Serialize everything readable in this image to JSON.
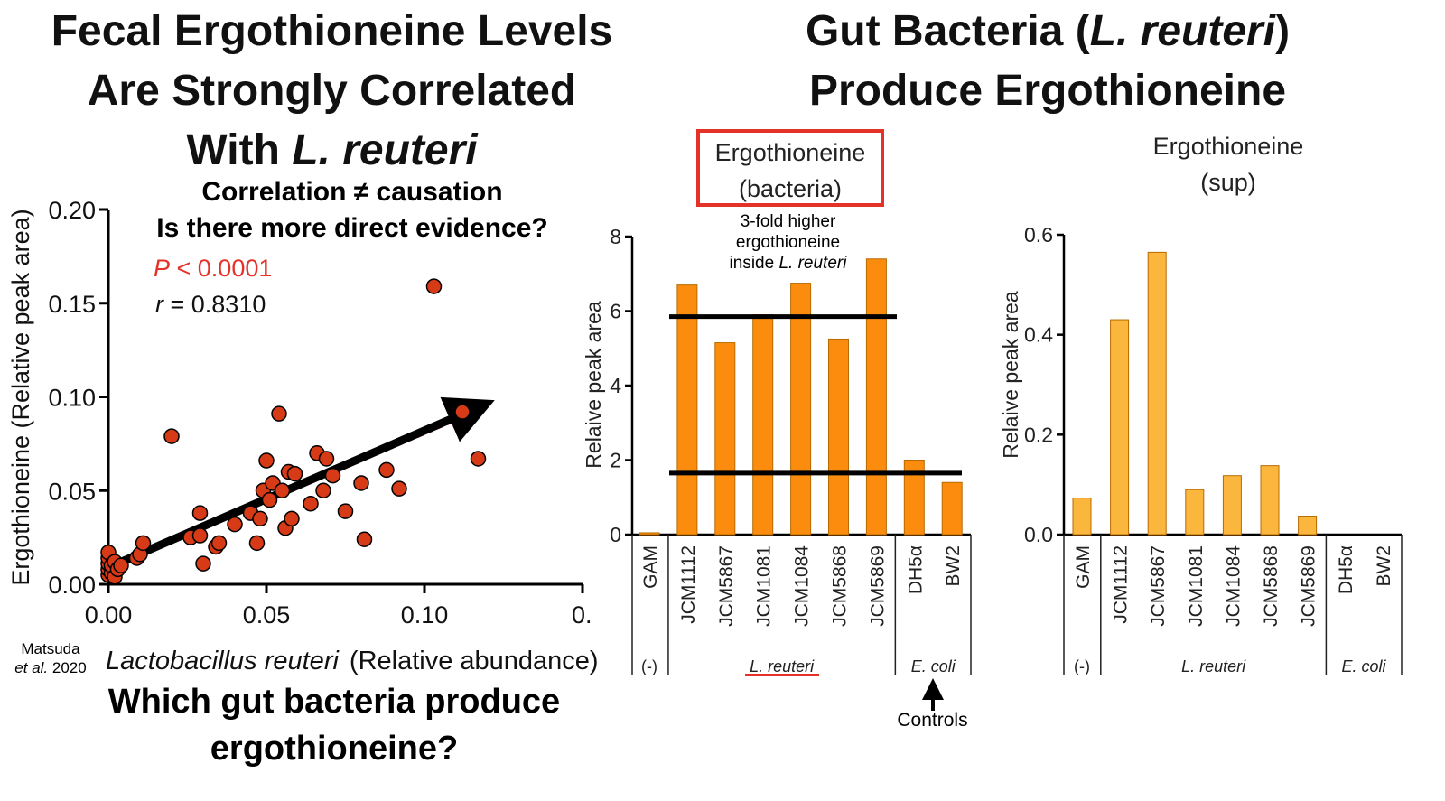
{
  "left_panel": {
    "title_lines": [
      "Fecal Ergothioneine Levels",
      "Are Strongly Correlated",
      "With ",
      "L. reuteri"
    ],
    "subtitle_1": "Correlation ≠ causation",
    "subtitle_2": "Is there more direct evidence?",
    "p_label_italic": "P",
    "p_label_rest": " < 0.0001",
    "r_label_italic": "r",
    "r_label_rest": " = 0.8310",
    "citation_line1": "Matsuda",
    "citation_italic": "et al.",
    "citation_year": " 2020",
    "question_lines": [
      "Which gut bacteria produce",
      "ergothioneine?"
    ],
    "accent_red": "#e53228",
    "marker_color": "#d63a17"
  },
  "right_panel": {
    "title_line1_pre": "Gut Bacteria (",
    "title_line1_italic": "L. reuteri",
    "title_line1_post": ")",
    "title_line2": "Produce Ergothioneine",
    "note_lines": [
      "3-fold higher",
      "ergothioneine",
      "inside "
    ],
    "note_italic": "L. reuteri",
    "controls_label": "Controls",
    "bar_orange": "#fb8c0d",
    "bar_yellow": "#fbb73d"
  },
  "chart_data": [
    {
      "type": "scatter",
      "title": "",
      "xlabel_italic": "Lactobacillus reuteri",
      "xlabel_rest": "(Relative abundance)",
      "ylabel": "Ergothioneine   (Relative peak area)",
      "xlim": [
        0,
        0.15
      ],
      "ylim": [
        0,
        0.2
      ],
      "x_ticks": [
        "0.00",
        "0.05",
        "0.10",
        "0."
      ],
      "y_ticks": [
        "0.00",
        "0.05",
        "0.10",
        "0.15",
        "0.20"
      ],
      "trend": {
        "x": [
          0.0,
          0.118
        ],
        "y": [
          0.009,
          0.095
        ]
      },
      "points": [
        {
          "x": 0.0,
          "y": 0.005
        },
        {
          "x": 0.0,
          "y": 0.008
        },
        {
          "x": 0.0,
          "y": 0.011
        },
        {
          "x": 0.0,
          "y": 0.014
        },
        {
          "x": 0.0,
          "y": 0.017
        },
        {
          "x": 0.001,
          "y": 0.006
        },
        {
          "x": 0.001,
          "y": 0.01
        },
        {
          "x": 0.002,
          "y": 0.012
        },
        {
          "x": 0.002,
          "y": 0.004
        },
        {
          "x": 0.003,
          "y": 0.008
        },
        {
          "x": 0.004,
          "y": 0.01
        },
        {
          "x": 0.009,
          "y": 0.014
        },
        {
          "x": 0.01,
          "y": 0.016
        },
        {
          "x": 0.011,
          "y": 0.022
        },
        {
          "x": 0.02,
          "y": 0.079
        },
        {
          "x": 0.026,
          "y": 0.025
        },
        {
          "x": 0.029,
          "y": 0.038
        },
        {
          "x": 0.029,
          "y": 0.026
        },
        {
          "x": 0.03,
          "y": 0.011
        },
        {
          "x": 0.034,
          "y": 0.02
        },
        {
          "x": 0.035,
          "y": 0.022
        },
        {
          "x": 0.04,
          "y": 0.032
        },
        {
          "x": 0.045,
          "y": 0.038
        },
        {
          "x": 0.047,
          "y": 0.022
        },
        {
          "x": 0.048,
          "y": 0.035
        },
        {
          "x": 0.049,
          "y": 0.05
        },
        {
          "x": 0.05,
          "y": 0.066
        },
        {
          "x": 0.051,
          "y": 0.045
        },
        {
          "x": 0.052,
          "y": 0.054
        },
        {
          "x": 0.055,
          "y": 0.05
        },
        {
          "x": 0.054,
          "y": 0.091
        },
        {
          "x": 0.056,
          "y": 0.03
        },
        {
          "x": 0.057,
          "y": 0.06
        },
        {
          "x": 0.058,
          "y": 0.035
        },
        {
          "x": 0.059,
          "y": 0.059
        },
        {
          "x": 0.064,
          "y": 0.043
        },
        {
          "x": 0.066,
          "y": 0.07
        },
        {
          "x": 0.068,
          "y": 0.05
        },
        {
          "x": 0.069,
          "y": 0.067
        },
        {
          "x": 0.071,
          "y": 0.058
        },
        {
          "x": 0.075,
          "y": 0.039
        },
        {
          "x": 0.08,
          "y": 0.054
        },
        {
          "x": 0.081,
          "y": 0.024
        },
        {
          "x": 0.088,
          "y": 0.061
        },
        {
          "x": 0.092,
          "y": 0.051
        },
        {
          "x": 0.103,
          "y": 0.159
        },
        {
          "x": 0.112,
          "y": 0.092
        },
        {
          "x": 0.117,
          "y": 0.067
        }
      ]
    },
    {
      "type": "bar",
      "title_lines": [
        "Ergothioneine",
        "(bacteria)"
      ],
      "ylabel": "Relaive peak area",
      "ylim": [
        0,
        8
      ],
      "y_ticks": [
        "0",
        "2",
        "4",
        "6",
        "8"
      ],
      "categories": [
        "GAM",
        "JCM1112",
        "JCM5867",
        "JCM1081",
        "JCM1084",
        "JCM5868",
        "JCM5869",
        "DH5α",
        "BW2"
      ],
      "values": [
        0.05,
        6.7,
        5.15,
        5.9,
        6.75,
        5.25,
        7.4,
        2.0,
        1.4
      ],
      "groups": [
        {
          "label": "(-)",
          "italic": false,
          "start": 0,
          "end": 0
        },
        {
          "label": "L. reuteri",
          "italic": true,
          "start": 1,
          "end": 6
        },
        {
          "label": "E. coli",
          "italic": true,
          "start": 7,
          "end": 8
        }
      ],
      "reference_lines": [
        5.9,
        1.7
      ]
    },
    {
      "type": "bar",
      "title_lines": [
        "Ergothioneine",
        "(sup)"
      ],
      "ylabel": "Relaive peak area",
      "ylim": [
        0,
        0.6
      ],
      "y_ticks": [
        "0.0",
        "0.2",
        "0.4",
        "0.6"
      ],
      "categories": [
        "GAM",
        "JCM1112",
        "JCM5867",
        "JCM1081",
        "JCM1084",
        "JCM5868",
        "JCM5869",
        "DH5α",
        "BW2"
      ],
      "values": [
        0.073,
        0.43,
        0.565,
        0.09,
        0.118,
        0.138,
        0.037,
        0,
        0
      ],
      "groups": [
        {
          "label": "(-)",
          "italic": false,
          "start": 0,
          "end": 0
        },
        {
          "label": "L. reuteri",
          "italic": true,
          "start": 1,
          "end": 6
        },
        {
          "label": "E. coli",
          "italic": true,
          "start": 7,
          "end": 8
        }
      ]
    }
  ]
}
